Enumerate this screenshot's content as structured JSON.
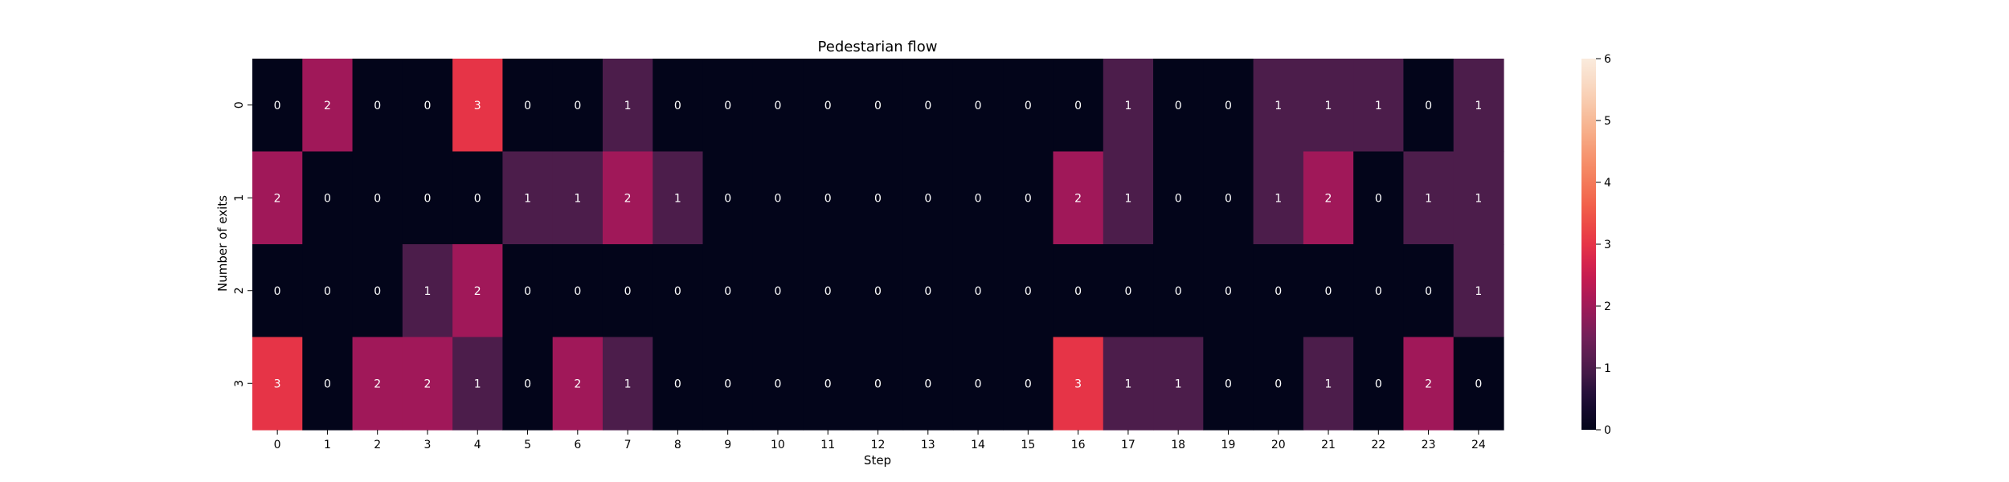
{
  "chart_data": {
    "type": "heatmap",
    "title": "Pedestarian flow",
    "xlabel": "Step",
    "ylabel": "Number of exits",
    "x_categories": [
      "0",
      "1",
      "2",
      "3",
      "4",
      "5",
      "6",
      "7",
      "8",
      "9",
      "10",
      "11",
      "12",
      "13",
      "14",
      "15",
      "16",
      "17",
      "18",
      "19",
      "20",
      "21",
      "22",
      "23",
      "24"
    ],
    "y_categories": [
      "0",
      "1",
      "2",
      "3"
    ],
    "values": [
      [
        0,
        2,
        0,
        0,
        3,
        0,
        0,
        1,
        0,
        0,
        0,
        0,
        0,
        0,
        0,
        0,
        0,
        1,
        0,
        0,
        1,
        1,
        1,
        0,
        1
      ],
      [
        2,
        0,
        0,
        0,
        0,
        1,
        1,
        2,
        1,
        0,
        0,
        0,
        0,
        0,
        0,
        0,
        2,
        1,
        0,
        0,
        1,
        2,
        0,
        1,
        1
      ],
      [
        0,
        0,
        0,
        1,
        2,
        0,
        0,
        0,
        0,
        0,
        0,
        0,
        0,
        0,
        0,
        0,
        0,
        0,
        0,
        0,
        0,
        0,
        0,
        0,
        1
      ],
      [
        3,
        0,
        2,
        2,
        1,
        0,
        2,
        1,
        0,
        0,
        0,
        0,
        0,
        0,
        0,
        0,
        3,
        1,
        1,
        0,
        0,
        1,
        0,
        2,
        0
      ]
    ],
    "colorbar": {
      "min": 0,
      "max": 6,
      "ticks": [
        "0",
        "1",
        "2",
        "3",
        "4",
        "5",
        "6"
      ]
    },
    "colormap": "rocket",
    "annotations": true,
    "grid": false
  }
}
